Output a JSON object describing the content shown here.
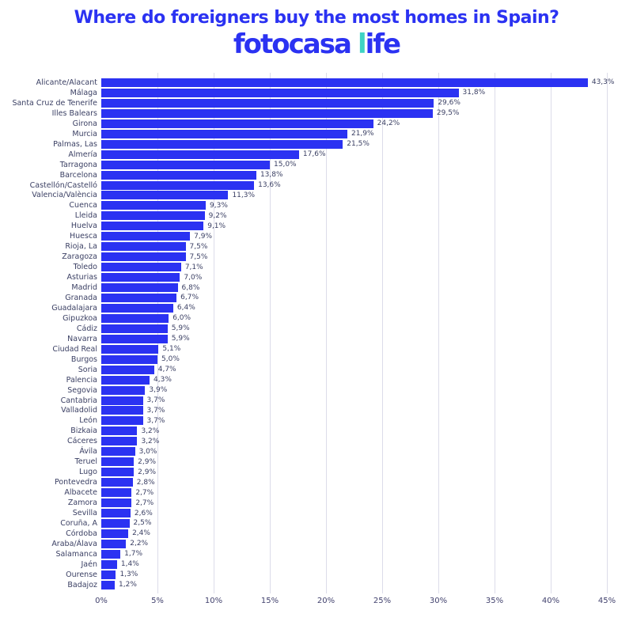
{
  "header": {
    "title": "Where do foreigners buy the most homes in Spain?",
    "logo": {
      "part1": "fotocasa",
      "life_l": "l",
      "life_rest": "ife"
    }
  },
  "colors": {
    "bar_blue": "#2b32f2",
    "title_blue": "#2b32f2",
    "logo_teal": "#3ed3c3",
    "label_text": "#3a3f63",
    "gridline": "#dcdce9"
  },
  "chart_data": {
    "type": "bar",
    "orientation": "horizontal",
    "title": "Where do foreigners buy the most homes in Spain?",
    "xlabel": "",
    "ylabel": "",
    "xlim": [
      0,
      45
    ],
    "grid": true,
    "x_ticks": [
      "0%",
      "5%",
      "10%",
      "15%",
      "20%",
      "25%",
      "30%",
      "35%",
      "40%",
      "45%"
    ],
    "categories": [
      "Alicante/Alacant",
      "Málaga",
      "Santa Cruz de Tenerife",
      "Illes Balears",
      "Girona",
      "Murcia",
      "Palmas, Las",
      "Almería",
      "Tarragona",
      "Barcelona",
      "Castellón/Castelló",
      "Valencia/València",
      "Cuenca",
      "Lleida",
      "Huelva",
      "Huesca",
      "Rioja, La",
      "Zaragoza",
      "Toledo",
      "Asturias",
      "Madrid",
      "Granada",
      "Guadalajara",
      "Gipuzkoa",
      "Cádiz",
      "Navarra",
      "Ciudad Real",
      "Burgos",
      "Soria",
      "Palencia",
      "Segovia",
      "Cantabria",
      "Valladolid",
      "León",
      "Bizkaia",
      "Cáceres",
      "Ávila",
      "Teruel",
      "Lugo",
      "Pontevedra",
      "Albacete",
      "Zamora",
      "Sevilla",
      "Coruña, A",
      "Córdoba",
      "Araba/Álava",
      "Salamanca",
      "Jaén",
      "Ourense",
      "Badajoz"
    ],
    "values": [
      43.3,
      31.8,
      29.6,
      29.5,
      24.2,
      21.9,
      21.5,
      17.6,
      15.0,
      13.8,
      13.6,
      11.3,
      9.3,
      9.2,
      9.1,
      7.9,
      7.5,
      7.5,
      7.1,
      7.0,
      6.8,
      6.7,
      6.4,
      6.0,
      5.9,
      5.9,
      5.1,
      5.0,
      4.7,
      4.3,
      3.9,
      3.7,
      3.7,
      3.7,
      3.2,
      3.2,
      3.0,
      2.9,
      2.9,
      2.8,
      2.7,
      2.7,
      2.6,
      2.5,
      2.4,
      2.2,
      1.7,
      1.4,
      1.3,
      1.2
    ],
    "value_labels": [
      "43,3%",
      "31,8%",
      "29,6%",
      "29,5%",
      "24,2%",
      "21,9%",
      "21,5%",
      "17,6%",
      "15,0%",
      "13,8%",
      "13,6%",
      "11,3%",
      "9,3%",
      "9,2%",
      "9,1%",
      "7,9%",
      "7,5%",
      "7,5%",
      "7,1%",
      "7,0%",
      "6,8%",
      "6,7%",
      "6,4%",
      "6,0%",
      "5,9%",
      "5,9%",
      "5,1%",
      "5,0%",
      "4,7%",
      "4,3%",
      "3,9%",
      "3,7%",
      "3,7%",
      "3,7%",
      "3,2%",
      "3,2%",
      "3,0%",
      "2,9%",
      "2,9%",
      "2,8%",
      "2,7%",
      "2,7%",
      "2,6%",
      "2,5%",
      "2,4%",
      "2,2%",
      "1,7%",
      "1,4%",
      "1,3%",
      "1,2%"
    ],
    "legend": null
  }
}
